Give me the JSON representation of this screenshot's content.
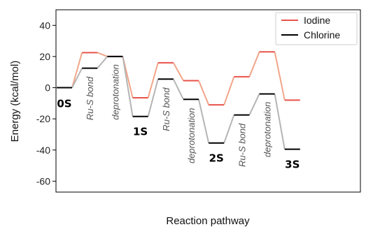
{
  "chart_data": {
    "type": "line",
    "title": "",
    "xlabel": "Reaction pathway",
    "ylabel": "Energy (kcal/mol)",
    "ylim": [
      -67,
      50
    ],
    "yticks": [
      40,
      20,
      0,
      -20,
      -40,
      -60
    ],
    "grid": false,
    "legend_position": "top-right",
    "series": [
      {
        "name": "Iodine",
        "color": "#e8524a",
        "connector_color": "#f2a589",
        "values": [
          0,
          22.5,
          20,
          -6.5,
          16,
          4.5,
          -11,
          7,
          23,
          -8
        ]
      },
      {
        "name": "Chlorine",
        "color": "#000000",
        "connector_color": "#b5b5b5",
        "values": [
          0,
          12.5,
          20,
          -18.5,
          5.5,
          -7.5,
          -35.5,
          -17.5,
          -4,
          -39.5
        ]
      }
    ],
    "annotations": [
      {
        "text": "0S",
        "style": "state",
        "x": 0,
        "y": -8
      },
      {
        "text": "Ru-S bond",
        "style": "italic",
        "x": 1,
        "y": 7
      },
      {
        "text": "deprotonation",
        "style": "italic",
        "x": 2,
        "y": 15
      },
      {
        "text": "1S",
        "style": "state",
        "x": 3,
        "y": -26
      },
      {
        "text": "Ru-S bond",
        "style": "italic",
        "x": 4,
        "y": 0
      },
      {
        "text": "deprotonation",
        "style": "italic",
        "x": 5,
        "y": -13
      },
      {
        "text": "2S",
        "style": "state",
        "x": 6,
        "y": -43
      },
      {
        "text": "Ru-S bond",
        "style": "italic",
        "x": 7,
        "y": -23
      },
      {
        "text": "deprotonation",
        "style": "italic",
        "x": 8,
        "y": -9
      },
      {
        "text": "3S",
        "style": "state",
        "x": 9,
        "y": -47
      }
    ]
  }
}
